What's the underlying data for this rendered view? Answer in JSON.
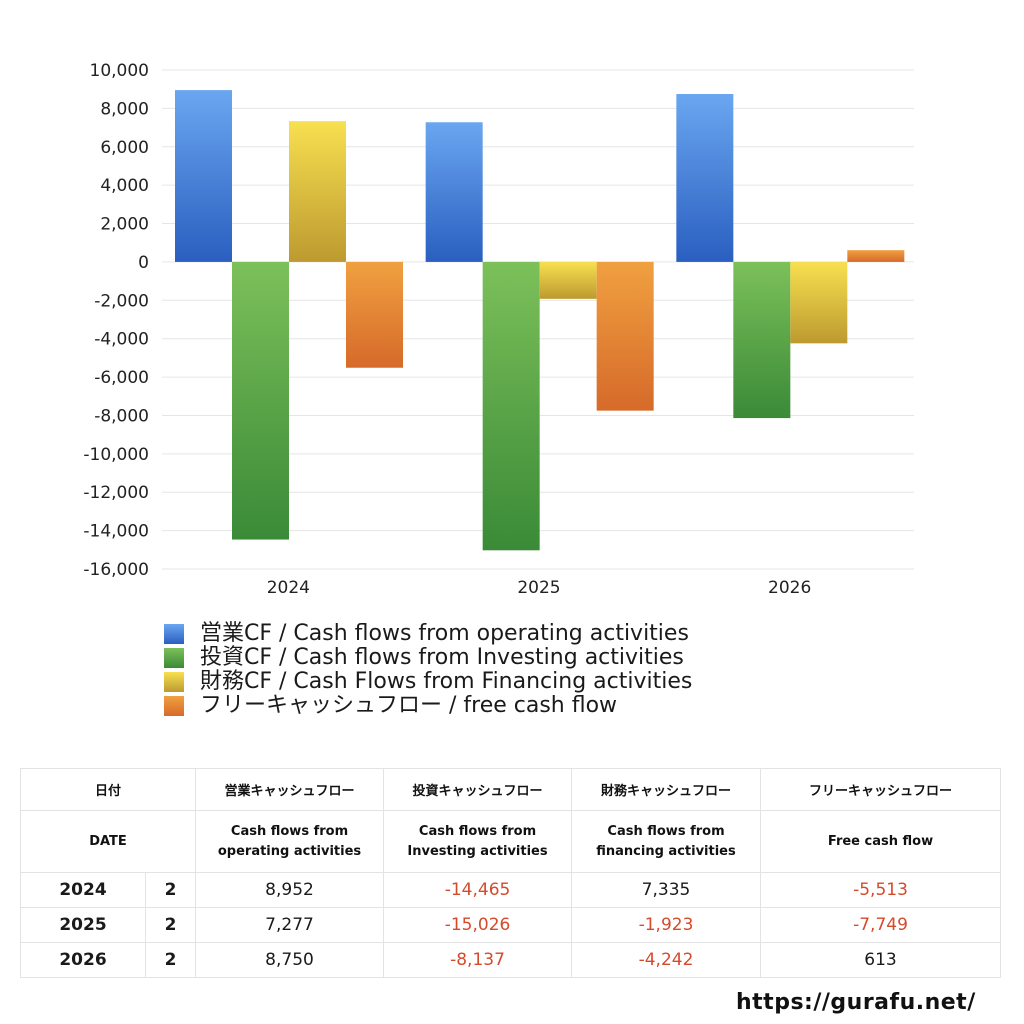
{
  "chart_data": {
    "type": "bar",
    "categories": [
      "2024",
      "2025",
      "2026"
    ],
    "series": [
      {
        "name": "営業CF / Cash flows from operating activities",
        "values": [
          8952,
          7277,
          8750
        ],
        "color_top": "#6aa6f0",
        "color_bottom": "#2a5fc0"
      },
      {
        "name": "投資CF / Cash flows from Investing activities",
        "values": [
          -14465,
          -15026,
          -8137
        ],
        "color_top": "#7cc05a",
        "color_bottom": "#3a8a37"
      },
      {
        "name": "財務CF / Cash Flows from Financing activities",
        "values": [
          7335,
          -1923,
          -4242
        ],
        "color_top": "#f7e050",
        "color_bottom": "#bd9a30"
      },
      {
        "name": "フリーキャッシュフロー / free cash flow",
        "values": [
          -5513,
          -7749,
          613
        ],
        "color_top": "#f0a040",
        "color_bottom": "#d66a2a"
      }
    ],
    "ylim": [
      -16000,
      10000
    ],
    "yticks": [
      "10,000",
      "8,000",
      "6,000",
      "4,000",
      "2,000",
      "0",
      "-2,000",
      "-4,000",
      "-6,000",
      "-8,000",
      "-10,000",
      "-12,000",
      "-14,000",
      "-16,000"
    ],
    "ytick_values": [
      10000,
      8000,
      6000,
      4000,
      2000,
      0,
      -2000,
      -4000,
      -6000,
      -8000,
      -10000,
      -12000,
      -14000,
      -16000
    ],
    "grid": true,
    "legend_position": "bottom"
  },
  "table": {
    "headers_jp": [
      "日付",
      "営業キャッシュフロー",
      "投資キャッシュフロー",
      "財務キャッシュフロー",
      "フリーキャッシュフロー"
    ],
    "headers_en": [
      "DATE",
      "Cash flows from operating activities",
      "Cash flows from Investing activities",
      "Cash flows from financing activities",
      "Free cash flow"
    ],
    "headers_en_lines": [
      [
        "DATE"
      ],
      [
        "Cash flows from",
        "operating activities"
      ],
      [
        "Cash flows from",
        "Investing activities"
      ],
      [
        "Cash flows from",
        "financing activities"
      ],
      [
        "Free cash flow"
      ]
    ],
    "rows": [
      {
        "year": "2024",
        "quarter": "2",
        "operating": "8,952",
        "investing": "-14,465",
        "financing": "7,335",
        "free": "-5,513"
      },
      {
        "year": "2025",
        "quarter": "2",
        "operating": "7,277",
        "investing": "-15,026",
        "financing": "-1,923",
        "free": "-7,749"
      },
      {
        "year": "2026",
        "quarter": "2",
        "operating": "8,750",
        "investing": "-8,137",
        "financing": "-4,242",
        "free": "613"
      }
    ]
  },
  "colors": {
    "negative": "#d64a2c",
    "grid": "#e6e6e6"
  },
  "site": "https://gurafu.net/"
}
